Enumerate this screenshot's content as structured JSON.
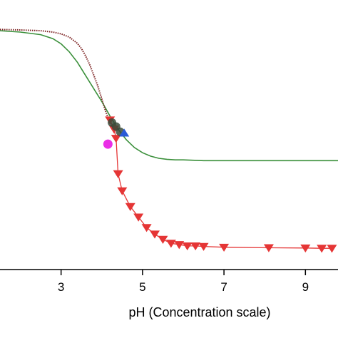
{
  "chart_data": {
    "type": "line",
    "title": "",
    "xlabel": "pH (Concentration scale)",
    "ylabel": "",
    "xlim": [
      1.5,
      9.8
    ],
    "ylim": [
      0,
      1.0
    ],
    "x_ticks": [
      3,
      5,
      7,
      9
    ],
    "x_tick_labels": [
      "3",
      "5",
      "7",
      "9"
    ],
    "grid": false,
    "legend": "none",
    "series": [
      {
        "style": "green-line",
        "color": "#3a8f3a",
        "x": [
          1.5,
          2.0,
          2.5,
          2.8,
          3.0,
          3.2,
          3.4,
          3.6,
          3.8,
          4.0,
          4.2,
          4.4,
          4.6,
          4.8,
          5.0,
          5.2,
          5.4,
          5.6,
          5.8,
          6.0,
          6.5,
          7.0,
          8.0,
          9.0,
          9.8
        ],
        "y": [
          0.91,
          0.905,
          0.895,
          0.88,
          0.86,
          0.83,
          0.79,
          0.74,
          0.69,
          0.64,
          0.585,
          0.535,
          0.495,
          0.465,
          0.445,
          0.432,
          0.424,
          0.42,
          0.418,
          0.418,
          0.415,
          0.415,
          0.415,
          0.415,
          0.415
        ]
      },
      {
        "style": "maroon-dotted",
        "color": "#7a1f1f",
        "x": [
          1.5,
          2.0,
          2.5,
          2.8,
          3.0,
          3.2,
          3.4,
          3.5,
          3.6,
          3.7,
          3.8,
          3.9,
          4.0,
          4.1,
          4.2,
          4.3
        ],
        "y": [
          0.915,
          0.913,
          0.91,
          0.905,
          0.898,
          0.886,
          0.862,
          0.842,
          0.815,
          0.782,
          0.742,
          0.7,
          0.65,
          0.6,
          0.56,
          0.525
        ]
      },
      {
        "style": "red-triangles",
        "color": "#e53535",
        "x": [
          4.2,
          4.3,
          4.35,
          4.4,
          4.5,
          4.7,
          4.9,
          5.1,
          5.3,
          5.5,
          5.7,
          5.9,
          6.1,
          6.3,
          6.5,
          7.0,
          8.1,
          9.0,
          9.4,
          9.65
        ],
        "y": [
          0.57,
          0.535,
          0.5,
          0.365,
          0.3,
          0.24,
          0.2,
          0.16,
          0.135,
          0.115,
          0.1,
          0.095,
          0.09,
          0.09,
          0.088,
          0.085,
          0.083,
          0.082,
          0.081,
          0.081
        ]
      },
      {
        "style": "dark-circle",
        "color": "#3a4a3a",
        "x": [
          4.25,
          4.35,
          4.45
        ],
        "y": [
          0.56,
          0.545,
          0.525
        ]
      },
      {
        "style": "blue-triangle",
        "color": "#2a5bd7",
        "x": [
          4.55
        ],
        "y": [
          0.52
        ]
      },
      {
        "style": "magenta-circle",
        "color": "#ea2ee6",
        "x": [
          4.15
        ],
        "y": [
          0.478
        ]
      }
    ]
  }
}
